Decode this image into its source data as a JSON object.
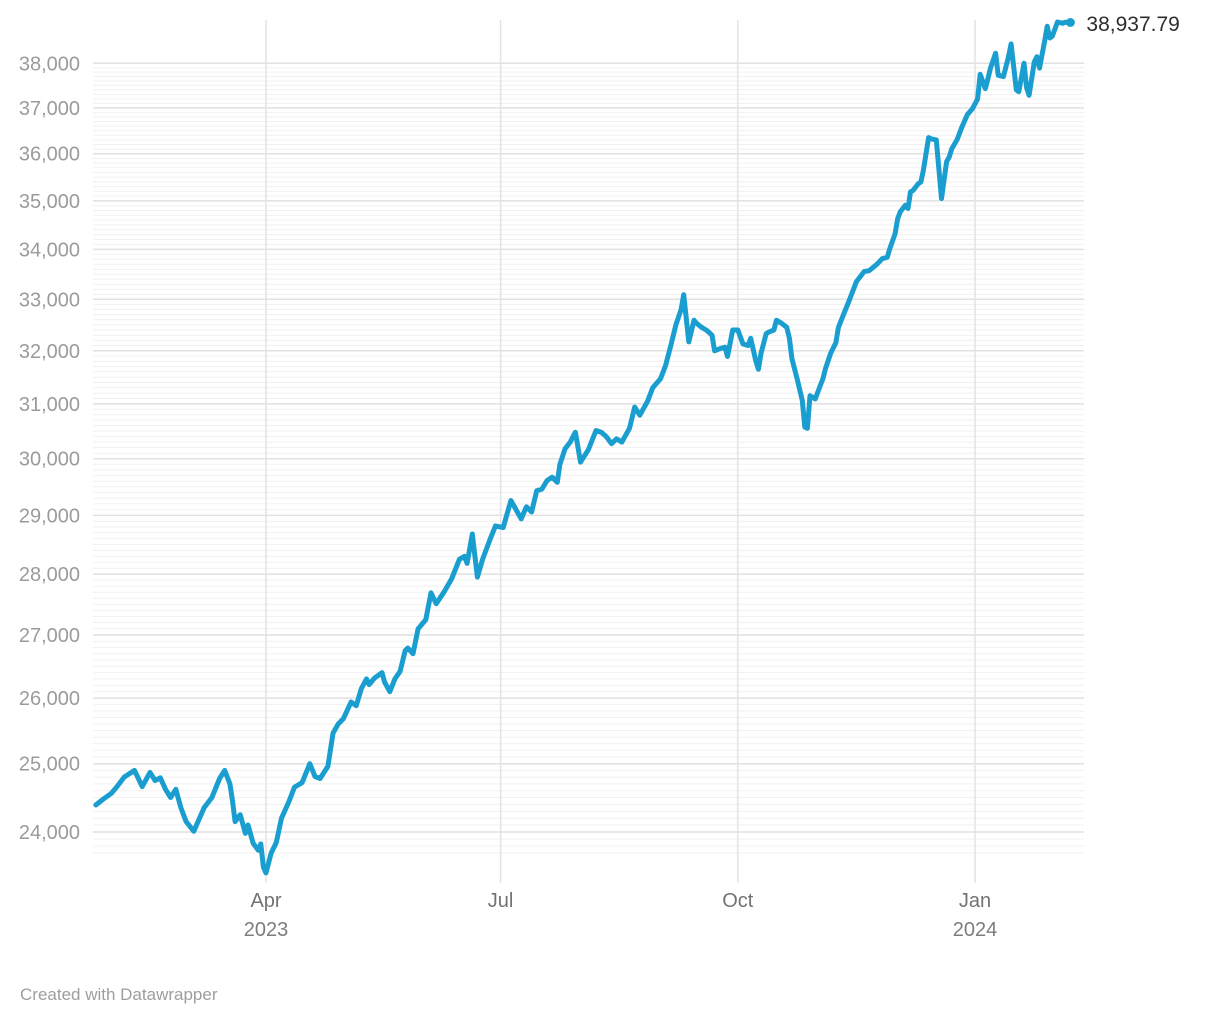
{
  "page": {
    "footer": "Created with Datawrapper"
  },
  "colors": {
    "line": "#1a9ed0",
    "major_grid": "#e1e1e1",
    "minor_grid": "#f1f1f1",
    "vertical_grid": "#e3e3e3",
    "y_label": "#9b9b9b",
    "x_label": "#737373",
    "end_label": "#2e2e2e",
    "background": "#ffffff"
  },
  "chart_data": {
    "type": "line",
    "title": "",
    "series_name": "index-value",
    "end_label": "38,937.79",
    "end_value": 38937.79,
    "x_axis": {
      "unit": "days since 2023-01-25",
      "domain_days": [
        -4,
        383
      ],
      "ticks": [
        {
          "day": 66,
          "label": "Apr",
          "sublabel": "2023"
        },
        {
          "day": 157,
          "label": "Jul",
          "sublabel": ""
        },
        {
          "day": 249,
          "label": "Oct",
          "sublabel": ""
        },
        {
          "day": 341,
          "label": "Jan",
          "sublabel": "2024"
        }
      ]
    },
    "y_axis": {
      "scale": "log",
      "grid": true,
      "minor_step": 100,
      "minor_range": [
        23700,
        38000
      ],
      "ticks": [
        {
          "value": 24000,
          "label": "24,000"
        },
        {
          "value": 25000,
          "label": "25,000"
        },
        {
          "value": 26000,
          "label": "26,000"
        },
        {
          "value": 27000,
          "label": "27,000"
        },
        {
          "value": 28000,
          "label": "28,000"
        },
        {
          "value": 29000,
          "label": "29,000"
        },
        {
          "value": 30000,
          "label": "30,000"
        },
        {
          "value": 31000,
          "label": "31,000"
        },
        {
          "value": 32000,
          "label": "32,000"
        },
        {
          "value": 33000,
          "label": "33,000"
        },
        {
          "value": 34000,
          "label": "34,000"
        },
        {
          "value": 35000,
          "label": "35,000"
        },
        {
          "value": 36000,
          "label": "36,000"
        },
        {
          "value": 37000,
          "label": "37,000"
        },
        {
          "value": 38000,
          "label": "38,000"
        }
      ]
    },
    "points": [
      [
        0,
        24390
      ],
      [
        3,
        24480
      ],
      [
        6,
        24560
      ],
      [
        8,
        24650
      ],
      [
        11,
        24800
      ],
      [
        15,
        24900
      ],
      [
        18,
        24660
      ],
      [
        21,
        24870
      ],
      [
        23,
        24750
      ],
      [
        25,
        24790
      ],
      [
        27,
        24620
      ],
      [
        29,
        24500
      ],
      [
        31,
        24620
      ],
      [
        33,
        24350
      ],
      [
        35,
        24150
      ],
      [
        38,
        24010
      ],
      [
        42,
        24350
      ],
      [
        45,
        24500
      ],
      [
        48,
        24780
      ],
      [
        50,
        24900
      ],
      [
        52,
        24700
      ],
      [
        53,
        24450
      ],
      [
        54,
        24150
      ],
      [
        56,
        24250
      ],
      [
        58,
        23980
      ],
      [
        59,
        24100
      ],
      [
        61,
        23840
      ],
      [
        63,
        23740
      ],
      [
        64,
        23830
      ],
      [
        65,
        23500
      ],
      [
        66,
        23420
      ],
      [
        68,
        23700
      ],
      [
        70,
        23850
      ],
      [
        72,
        24200
      ],
      [
        73,
        24280
      ],
      [
        75,
        24450
      ],
      [
        77,
        24650
      ],
      [
        80,
        24720
      ],
      [
        83,
        25000
      ],
      [
        85,
        24810
      ],
      [
        87,
        24780
      ],
      [
        90,
        24960
      ],
      [
        92,
        25460
      ],
      [
        94,
        25600
      ],
      [
        96,
        25680
      ],
      [
        99,
        25940
      ],
      [
        101,
        25880
      ],
      [
        103,
        26150
      ],
      [
        105,
        26300
      ],
      [
        106,
        26210
      ],
      [
        108,
        26310
      ],
      [
        111,
        26400
      ],
      [
        112,
        26250
      ],
      [
        114,
        26100
      ],
      [
        116,
        26300
      ],
      [
        118,
        26420
      ],
      [
        120,
        26750
      ],
      [
        121,
        26790
      ],
      [
        123,
        26700
      ],
      [
        125,
        27100
      ],
      [
        128,
        27250
      ],
      [
        130,
        27690
      ],
      [
        132,
        27510
      ],
      [
        135,
        27700
      ],
      [
        138,
        27920
      ],
      [
        141,
        28250
      ],
      [
        143,
        28300
      ],
      [
        144,
        28180
      ],
      [
        146,
        28680
      ],
      [
        148,
        27950
      ],
      [
        150,
        28250
      ],
      [
        153,
        28600
      ],
      [
        155,
        28820
      ],
      [
        158,
        28790
      ],
      [
        161,
        29260
      ],
      [
        165,
        28940
      ],
      [
        167,
        29150
      ],
      [
        169,
        29060
      ],
      [
        171,
        29430
      ],
      [
        173,
        29460
      ],
      [
        175,
        29610
      ],
      [
        177,
        29670
      ],
      [
        179,
        29580
      ],
      [
        180,
        29900
      ],
      [
        182,
        30180
      ],
      [
        184,
        30300
      ],
      [
        186,
        30480
      ],
      [
        188,
        29940
      ],
      [
        191,
        30160
      ],
      [
        194,
        30510
      ],
      [
        196,
        30480
      ],
      [
        198,
        30400
      ],
      [
        200,
        30270
      ],
      [
        202,
        30360
      ],
      [
        204,
        30300
      ],
      [
        207,
        30550
      ],
      [
        209,
        30940
      ],
      [
        211,
        30790
      ],
      [
        214,
        31050
      ],
      [
        216,
        31300
      ],
      [
        219,
        31470
      ],
      [
        221,
        31720
      ],
      [
        223,
        32100
      ],
      [
        225,
        32500
      ],
      [
        227,
        32800
      ],
      [
        228,
        33090
      ],
      [
        230,
        32170
      ],
      [
        232,
        32590
      ],
      [
        233,
        32530
      ],
      [
        235,
        32450
      ],
      [
        237,
        32390
      ],
      [
        239,
        32300
      ],
      [
        240,
        32000
      ],
      [
        242,
        32040
      ],
      [
        244,
        32070
      ],
      [
        245,
        31890
      ],
      [
        247,
        32400
      ],
      [
        249,
        32400
      ],
      [
        251,
        32130
      ],
      [
        253,
        32100
      ],
      [
        254,
        32240
      ],
      [
        256,
        31800
      ],
      [
        257,
        31650
      ],
      [
        258,
        31950
      ],
      [
        260,
        32330
      ],
      [
        261,
        32360
      ],
      [
        263,
        32400
      ],
      [
        264,
        32590
      ],
      [
        266,
        32530
      ],
      [
        268,
        32450
      ],
      [
        269,
        32240
      ],
      [
        270,
        31850
      ],
      [
        272,
        31470
      ],
      [
        274,
        31060
      ],
      [
        275,
        30570
      ],
      [
        276,
        30550
      ],
      [
        277,
        31150
      ],
      [
        279,
        31090
      ],
      [
        282,
        31470
      ],
      [
        283,
        31660
      ],
      [
        285,
        31950
      ],
      [
        287,
        32150
      ],
      [
        288,
        32450
      ],
      [
        290,
        32700
      ],
      [
        292,
        32950
      ],
      [
        295,
        33350
      ],
      [
        298,
        33550
      ],
      [
        300,
        33570
      ],
      [
        303,
        33700
      ],
      [
        305,
        33810
      ],
      [
        307,
        33840
      ],
      [
        308,
        34020
      ],
      [
        310,
        34320
      ],
      [
        311,
        34630
      ],
      [
        312,
        34770
      ],
      [
        314,
        34910
      ],
      [
        315,
        34840
      ],
      [
        316,
        35190
      ],
      [
        317,
        35220
      ],
      [
        319,
        35360
      ],
      [
        320,
        35400
      ],
      [
        321,
        35650
      ],
      [
        323,
        36350
      ],
      [
        324,
        36320
      ],
      [
        326,
        36300
      ],
      [
        328,
        35050
      ],
      [
        330,
        35830
      ],
      [
        331,
        35930
      ],
      [
        332,
        36110
      ],
      [
        334,
        36300
      ],
      [
        336,
        36590
      ],
      [
        338,
        36850
      ],
      [
        340,
        36980
      ],
      [
        342,
        37200
      ],
      [
        343,
        37750
      ],
      [
        345,
        37430
      ],
      [
        346,
        37650
      ],
      [
        347,
        37890
      ],
      [
        349,
        38230
      ],
      [
        350,
        37730
      ],
      [
        352,
        37700
      ],
      [
        354,
        38150
      ],
      [
        355,
        38440
      ],
      [
        357,
        37400
      ],
      [
        358,
        37360
      ],
      [
        360,
        38000
      ],
      [
        361,
        37450
      ],
      [
        362,
        37280
      ],
      [
        364,
        38030
      ],
      [
        365,
        38150
      ],
      [
        366,
        37890
      ],
      [
        368,
        38500
      ],
      [
        369,
        38850
      ],
      [
        370,
        38580
      ],
      [
        371,
        38620
      ],
      [
        373,
        38950
      ],
      [
        375,
        38920
      ],
      [
        376,
        38945
      ],
      [
        378,
        38937.79
      ]
    ]
  }
}
